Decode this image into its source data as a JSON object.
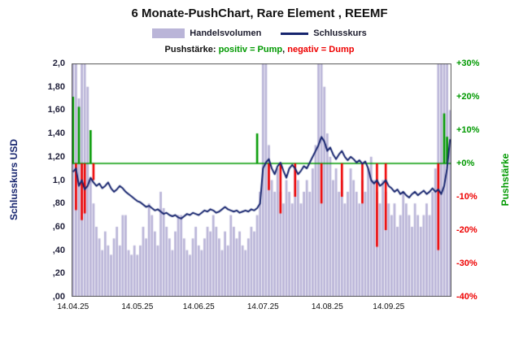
{
  "legend": {
    "volume": "Handelsvolumen",
    "price": "Schlusskurs"
  },
  "subtitle": {
    "segments": [
      {
        "text": "Pushstärke: ",
        "color": "#111111"
      },
      {
        "text": "positiv = Pump",
        "color": "#009900"
      },
      {
        "text": ", ",
        "color": "#111111"
      },
      {
        "text": "negativ = Dump",
        "color": "#ee0000"
      }
    ]
  },
  "colors": {
    "volume_bar": "#bab5d8",
    "price_line": "#16246e",
    "pump_green": "#009900",
    "dump_red": "#ee0000",
    "zero_line": "#009900"
  },
  "chart_data": {
    "type": "bar+line",
    "title": "6 Monate-PushChart, Rare Element , REEMF",
    "x_labels": [
      "14.04.25",
      "14.05.25",
      "14.06.25",
      "14.07.25",
      "14.08.25",
      "14.09.25"
    ],
    "x_tick_indices": [
      0,
      22,
      43,
      65,
      87,
      108
    ],
    "n_points": 130,
    "grid": false,
    "left_axis": {
      "title": "Schlusskurs USD",
      "min": 0.0,
      "max": 2.0,
      "tick_labels": [
        "2,0",
        "1,80",
        "1,60",
        "1,40",
        "1,20",
        "1,0",
        ",80",
        ",60",
        ",40",
        ",20",
        ",00"
      ],
      "color": "#16246e"
    },
    "right_axis": {
      "title": "Pushstärke",
      "min": -40,
      "max": 30,
      "tick_labels": [
        "+30%",
        "+20%",
        "+10%",
        "+0%",
        "-10%",
        "-20%",
        "-30%",
        "-40%"
      ],
      "pos_color": "#009900",
      "neg_color": "#ee0000"
    },
    "zero_line": {
      "axis": "right",
      "value": 0,
      "color": "#009900"
    },
    "series": [
      {
        "name": "Handelsvolumen",
        "type": "bar",
        "axis": "none",
        "unit": "percent_of_plot_height",
        "color": "#bab5d8",
        "values": [
          100,
          100,
          85,
          100,
          100,
          90,
          50,
          40,
          30,
          25,
          20,
          28,
          22,
          18,
          25,
          30,
          22,
          35,
          35,
          20,
          18,
          22,
          18,
          22,
          30,
          25,
          40,
          35,
          28,
          22,
          45,
          38,
          30,
          25,
          20,
          28,
          35,
          35,
          25,
          20,
          18,
          25,
          30,
          22,
          20,
          25,
          30,
          28,
          35,
          30,
          25,
          20,
          28,
          22,
          35,
          30,
          25,
          28,
          22,
          20,
          25,
          30,
          28,
          35,
          45,
          100,
          100,
          65,
          50,
          45,
          55,
          45,
          40,
          50,
          45,
          40,
          55,
          50,
          40,
          45,
          50,
          45,
          55,
          65,
          100,
          100,
          90,
          70,
          60,
          50,
          55,
          45,
          50,
          40,
          45,
          55,
          50,
          45,
          40,
          50,
          45,
          55,
          60,
          50,
          45,
          40,
          50,
          45,
          40,
          35,
          40,
          30,
          35,
          45,
          40,
          35,
          30,
          40,
          35,
          30,
          35,
          40,
          35,
          45,
          55,
          100,
          100,
          100,
          100,
          80
        ]
      },
      {
        "name": "Pushstärke",
        "type": "bar",
        "axis": "right",
        "unit": "percent",
        "positive_color": "#009900",
        "negative_color": "#ee0000",
        "values": [
          20,
          -14,
          17,
          -17,
          -15,
          0,
          10,
          -5,
          0,
          0,
          0,
          0,
          0,
          0,
          0,
          0,
          0,
          0,
          0,
          0,
          0,
          0,
          0,
          0,
          0,
          0,
          0,
          0,
          0,
          0,
          0,
          0,
          0,
          0,
          0,
          0,
          0,
          0,
          0,
          0,
          0,
          0,
          0,
          0,
          0,
          0,
          0,
          0,
          0,
          0,
          0,
          0,
          0,
          0,
          0,
          0,
          0,
          0,
          0,
          0,
          0,
          0,
          0,
          9,
          0,
          0,
          0,
          -8,
          0,
          0,
          0,
          -15,
          0,
          0,
          0,
          0,
          -10,
          0,
          0,
          0,
          0,
          0,
          0,
          0,
          0,
          -12,
          0,
          0,
          0,
          0,
          0,
          0,
          -10,
          0,
          0,
          0,
          0,
          0,
          0,
          -12,
          0,
          0,
          0,
          0,
          -25,
          0,
          0,
          -20,
          0,
          0,
          0,
          0,
          0,
          0,
          0,
          0,
          0,
          0,
          0,
          0,
          0,
          0,
          0,
          0,
          0,
          -26,
          0,
          15,
          8,
          0
        ]
      },
      {
        "name": "Schlusskurs",
        "type": "line",
        "axis": "left",
        "unit": "USD",
        "color": "#16246e",
        "values": [
          1.07,
          1.1,
          0.95,
          1.0,
          0.92,
          0.95,
          1.02,
          0.98,
          0.95,
          0.97,
          0.93,
          0.95,
          0.98,
          0.93,
          0.9,
          0.92,
          0.95,
          0.93,
          0.9,
          0.88,
          0.86,
          0.84,
          0.82,
          0.81,
          0.79,
          0.77,
          0.78,
          0.76,
          0.74,
          0.75,
          0.73,
          0.71,
          0.72,
          0.7,
          0.69,
          0.7,
          0.68,
          0.67,
          0.69,
          0.71,
          0.7,
          0.72,
          0.71,
          0.7,
          0.72,
          0.74,
          0.73,
          0.75,
          0.74,
          0.72,
          0.73,
          0.75,
          0.77,
          0.75,
          0.74,
          0.73,
          0.74,
          0.72,
          0.73,
          0.74,
          0.73,
          0.75,
          0.74,
          0.76,
          0.8,
          1.1,
          1.15,
          1.18,
          1.1,
          1.05,
          1.12,
          1.15,
          1.08,
          1.02,
          1.1,
          1.13,
          1.1,
          1.05,
          1.08,
          1.12,
          1.1,
          1.15,
          1.2,
          1.25,
          1.3,
          1.37,
          1.33,
          1.25,
          1.28,
          1.22,
          1.18,
          1.22,
          1.25,
          1.2,
          1.17,
          1.2,
          1.18,
          1.15,
          1.17,
          1.14,
          1.16,
          1.1,
          1.0,
          0.97,
          1.0,
          0.95,
          0.97,
          1.0,
          0.95,
          0.93,
          0.9,
          0.92,
          0.88,
          0.9,
          0.87,
          0.85,
          0.88,
          0.9,
          0.87,
          0.89,
          0.91,
          0.88,
          0.9,
          0.93,
          0.9,
          0.92,
          0.88,
          0.95,
          1.1,
          1.35
        ]
      }
    ]
  }
}
